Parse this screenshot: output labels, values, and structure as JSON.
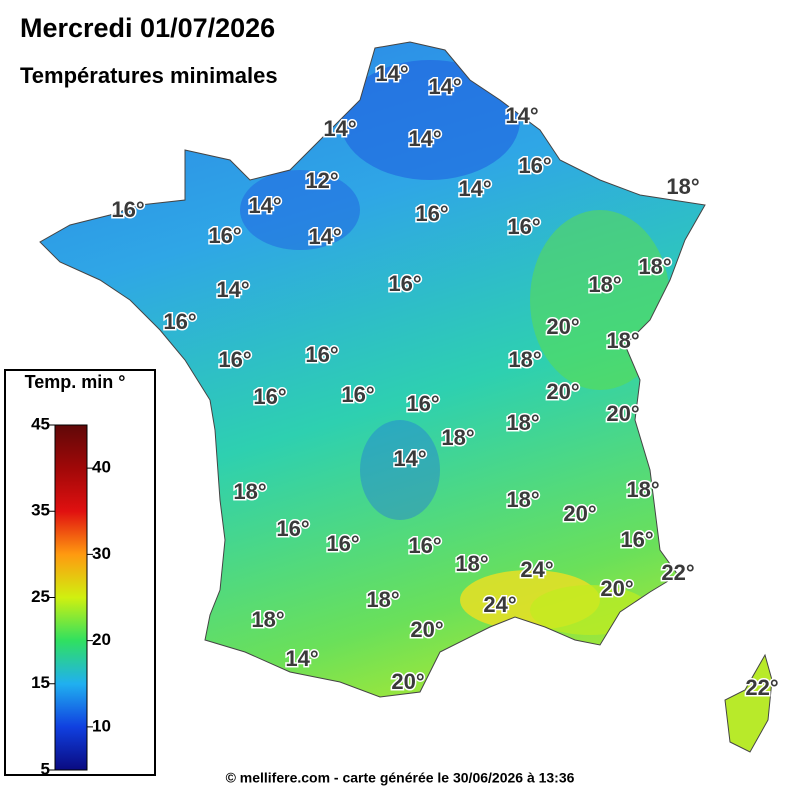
{
  "header": {
    "title": "Mercredi 01/07/2026",
    "subtitle": "Températures minimales"
  },
  "map": {
    "labels": [
      "14°",
      "14°",
      "14°",
      "14°",
      "14°",
      "12°",
      "14°",
      "16°",
      "18°",
      "16°",
      "14°",
      "16°",
      "16°",
      "14°",
      "16°",
      "18°",
      "16°",
      "18°",
      "14°",
      "16°",
      "20°",
      "18°",
      "16°",
      "16°",
      "18°",
      "20°",
      "16°",
      "16°",
      "16°",
      "20°",
      "18°",
      "18°",
      "14°",
      "18°",
      "18°",
      "18°",
      "20°",
      "16°",
      "16°",
      "16°",
      "16°",
      "18°",
      "24°",
      "22°",
      "20°",
      "24°",
      "18°",
      "18°",
      "20°",
      "14°",
      "20°",
      "22°"
    ]
  },
  "legend": {
    "title": "Temp. min °",
    "range": [
      5,
      45
    ],
    "ticks": [
      5,
      10,
      15,
      20,
      25,
      30,
      35,
      40,
      45
    ]
  },
  "footer": "© mellifere.com - carte générée le 30/06/2026 à 13:36"
}
